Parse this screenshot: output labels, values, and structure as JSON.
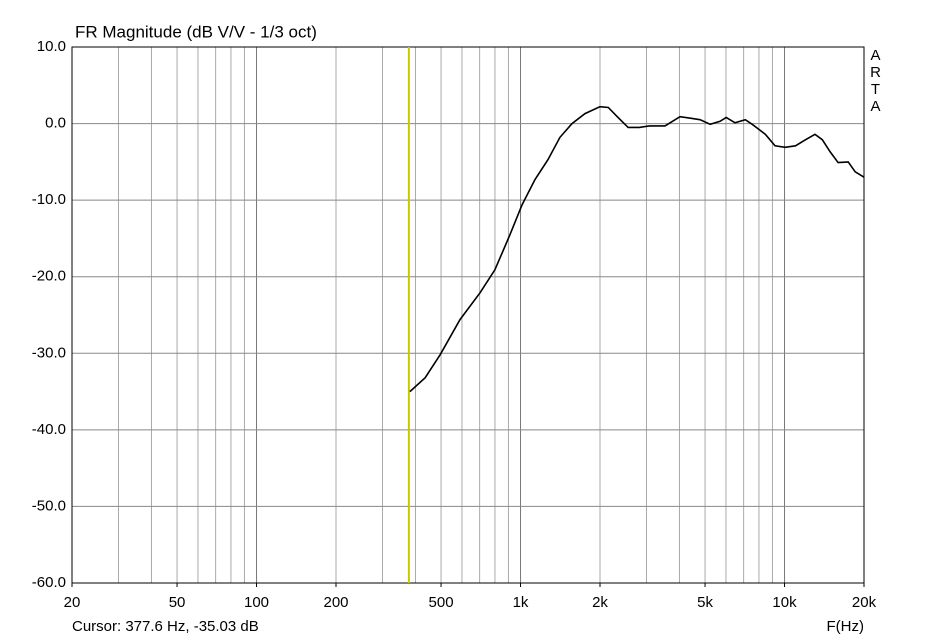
{
  "chart_data": {
    "type": "line",
    "title": "FR Magnitude (dB V/V - 1/3 oct)",
    "x_label": "F(Hz)",
    "brand": "ARTA",
    "cursor_text": "Cursor: 377.6 Hz, -35.03 dB",
    "cursor_x": 377.6,
    "cursor_color": "#c8c800",
    "log_x": true,
    "grid": true,
    "xlim": [
      20,
      20000
    ],
    "ylim": [
      -60,
      10
    ],
    "xticks": [
      20,
      50,
      100,
      200,
      500,
      {
        "value": 1000,
        "label": "1k"
      },
      {
        "value": 2000,
        "label": "2k"
      },
      {
        "value": 5000,
        "label": "5k"
      },
      {
        "value": 10000,
        "label": "10k"
      },
      {
        "value": 20000,
        "label": "20k"
      }
    ],
    "yticks": [
      {
        "value": 10,
        "label": "10.0"
      },
      {
        "value": 0,
        "label": "0.0"
      },
      {
        "value": -10,
        "label": "-10.0"
      },
      {
        "value": -20,
        "label": "-20.0"
      },
      {
        "value": -30,
        "label": "-30.0"
      },
      {
        "value": -40,
        "label": "-40.0"
      },
      {
        "value": -50,
        "label": "-50.0"
      },
      {
        "value": -60,
        "label": "-60.0"
      }
    ],
    "x": [
      381,
      435,
      496,
      590,
      702,
      800,
      912,
      1014,
      1135,
      1271,
      1410,
      1566,
      1754,
      2000,
      2151,
      2340,
      2555,
      2821,
      3074,
      3525,
      4020,
      4400,
      4785,
      5230,
      5700,
      6010,
      6490,
      7100,
      7540,
      8460,
      9200,
      10050,
      11000,
      12020,
      13050,
      13900,
      14900,
      15960,
      17420,
      18530,
      20000
    ],
    "series": [
      {
        "color": "#000000",
        "values": [
          -35.0,
          -33.2,
          -30.2,
          -25.6,
          -22.1,
          -19.1,
          -14.5,
          -10.6,
          -7.3,
          -4.7,
          -1.8,
          0,
          1.3,
          2.2,
          2.1,
          0.8,
          -0.5,
          -0.5,
          -0.3,
          -0.3,
          0.9,
          0.7,
          0.5,
          -0.1,
          0.3,
          0.8,
          0.1,
          0.5,
          -0.1,
          -1.4,
          -2.9,
          -3.1,
          -2.9,
          -2.1,
          -1.4,
          -2.1,
          -3.7,
          -5.1,
          -5.0,
          -6.3,
          -7.0
        ]
      }
    ]
  }
}
